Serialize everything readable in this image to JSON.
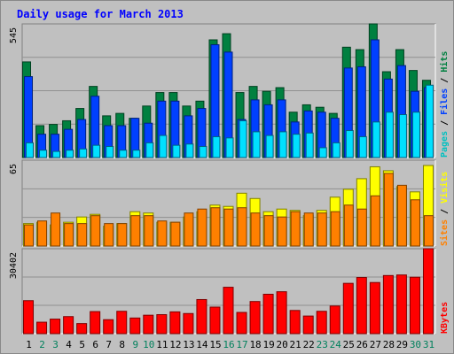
{
  "title": "Daily usage for March 2013",
  "colors": {
    "title": "#0000ff",
    "hits": "#008040",
    "hits_dark": "#004020",
    "files": "#0040ff",
    "files_dark": "#002080",
    "pages": "#00e0ff",
    "pages_dark": "#006080",
    "visits": "#ffff00",
    "visits_dark": "#808000",
    "sites": "#ff8000",
    "sites_dark": "#804000",
    "kbytes": "#ff0000",
    "kbytes_dark": "#800000",
    "weekday_label": "#000000",
    "weekend_label": "#00805c"
  },
  "chart_data": [
    {
      "type": "bar",
      "panel": "hits-files-pages",
      "ymax_label": "545",
      "ylim": [
        0,
        545
      ],
      "legend": [
        {
          "label": "Pages",
          "color": "#00c0c0"
        },
        {
          "sep": "/"
        },
        {
          "label": "Files",
          "color": "#0040ff"
        },
        {
          "sep": "/"
        },
        {
          "label": "Hits",
          "color": "#008040"
        }
      ],
      "series": [
        {
          "name": "Hits",
          "values": [
            390,
            130,
            135,
            150,
            200,
            290,
            170,
            180,
            160,
            210,
            265,
            265,
            210,
            230,
            480,
            505,
            265,
            290,
            270,
            285,
            185,
            215,
            205,
            180,
            450,
            440,
            545,
            350,
            440,
            355,
            315
          ]
        },
        {
          "name": "Files",
          "values": [
            330,
            95,
            95,
            115,
            155,
            250,
            130,
            130,
            160,
            140,
            230,
            230,
            170,
            200,
            460,
            430,
            155,
            235,
            215,
            235,
            145,
            190,
            185,
            160,
            365,
            370,
            480,
            320,
            375,
            270,
            285
          ]
        },
        {
          "name": "Pages",
          "values": [
            60,
            30,
            25,
            30,
            35,
            50,
            45,
            30,
            30,
            60,
            90,
            50,
            55,
            45,
            85,
            80,
            150,
            105,
            90,
            105,
            95,
            100,
            40,
            60,
            110,
            85,
            145,
            185,
            175,
            185,
            295
          ]
        }
      ]
    },
    {
      "type": "bar",
      "panel": "sites-visits",
      "ymax_label": "65",
      "ylim": [
        0,
        65
      ],
      "legend": [
        {
          "label": "Sites",
          "color": "#ff8000"
        },
        {
          "sep": "/"
        },
        {
          "label": "Visits",
          "color": "#ffff00"
        }
      ],
      "series": [
        {
          "name": "Visits",
          "values": [
            17,
            18,
            16,
            18,
            22,
            24,
            15,
            17,
            26,
            25,
            18,
            18,
            22,
            26,
            31,
            30,
            40,
            36,
            26,
            28,
            27,
            23,
            27,
            37,
            43,
            51,
            60,
            57,
            45,
            41,
            61
          ]
        },
        {
          "name": "Sites",
          "values": [
            16,
            19,
            25,
            17,
            17,
            23,
            17,
            17,
            23,
            23,
            19,
            18,
            25,
            28,
            29,
            28,
            29,
            25,
            23,
            22,
            26,
            25,
            25,
            26,
            31,
            28,
            38,
            55,
            46,
            35,
            23
          ]
        }
      ]
    },
    {
      "type": "bar",
      "panel": "kbytes",
      "ymax_label": "30402",
      "ylim": [
        0,
        30402
      ],
      "legend": [
        {
          "label": "KBytes",
          "color": "#ff0000"
        }
      ],
      "series": [
        {
          "name": "KBytes",
          "values": [
            11800,
            4100,
            5200,
            6100,
            3600,
            7900,
            5000,
            8000,
            5600,
            6600,
            6800,
            7800,
            7200,
            12200,
            9500,
            16600,
            7600,
            11500,
            14100,
            15000,
            8300,
            6300,
            8000,
            9900,
            18000,
            20100,
            18300,
            20800,
            21000,
            20200,
            30402
          ]
        }
      ]
    }
  ],
  "x_labels": [
    {
      "label": "1",
      "weekend": false
    },
    {
      "label": "2",
      "weekend": true
    },
    {
      "label": "3",
      "weekend": true
    },
    {
      "label": "4",
      "weekend": false
    },
    {
      "label": "5",
      "weekend": false
    },
    {
      "label": "6",
      "weekend": false
    },
    {
      "label": "7",
      "weekend": false
    },
    {
      "label": "8",
      "weekend": false
    },
    {
      "label": "9",
      "weekend": true
    },
    {
      "label": "10",
      "weekend": true
    },
    {
      "label": "11",
      "weekend": false
    },
    {
      "label": "12",
      "weekend": false
    },
    {
      "label": "13",
      "weekend": false
    },
    {
      "label": "14",
      "weekend": false
    },
    {
      "label": "15",
      "weekend": false
    },
    {
      "label": "16",
      "weekend": true
    },
    {
      "label": "17",
      "weekend": true
    },
    {
      "label": "18",
      "weekend": false
    },
    {
      "label": "19",
      "weekend": false
    },
    {
      "label": "20",
      "weekend": false
    },
    {
      "label": "21",
      "weekend": false
    },
    {
      "label": "22",
      "weekend": false
    },
    {
      "label": "23",
      "weekend": true
    },
    {
      "label": "24",
      "weekend": true
    },
    {
      "label": "25",
      "weekend": false
    },
    {
      "label": "26",
      "weekend": false
    },
    {
      "label": "27",
      "weekend": false
    },
    {
      "label": "28",
      "weekend": false
    },
    {
      "label": "29",
      "weekend": false
    },
    {
      "label": "30",
      "weekend": true
    },
    {
      "label": "31",
      "weekend": true
    }
  ]
}
